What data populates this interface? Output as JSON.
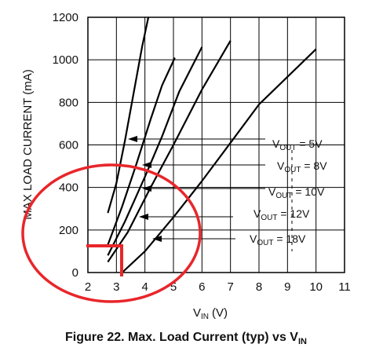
{
  "chart_data": {
    "type": "line",
    "title": "",
    "xlabel": {
      "main": "V",
      "sub": "IN",
      "unit": "(V)"
    },
    "ylabel": "MAX LOAD CURRENT (mA)",
    "xlim": [
      2,
      11
    ],
    "ylim": [
      0,
      1200
    ],
    "xticks": [
      "2",
      "3",
      "4",
      "5",
      "6",
      "7",
      "8",
      "9",
      "10",
      "11"
    ],
    "yticks": [
      "0",
      "200",
      "400",
      "600",
      "800",
      "1000",
      "1200"
    ],
    "grid": true,
    "series": [
      {
        "name": "V_OUT = 5V",
        "points": [
          [
            2.7,
            280
          ],
          [
            3.0,
            420
          ],
          [
            3.3,
            620
          ],
          [
            3.6,
            840
          ],
          [
            3.9,
            1060
          ],
          [
            4.2,
            1250
          ]
        ]
      },
      {
        "name": "V_OUT = 8V",
        "points": [
          [
            2.7,
            130
          ],
          [
            3.2,
            310
          ],
          [
            3.7,
            510
          ],
          [
            4.2,
            720
          ],
          [
            4.6,
            880
          ],
          [
            5.05,
            1010
          ]
        ]
      },
      {
        "name": "V_OUT = 10V",
        "points": [
          [
            2.7,
            80
          ],
          [
            3.3,
            240
          ],
          [
            4.0,
            450
          ],
          [
            4.6,
            640
          ],
          [
            5.2,
            850
          ],
          [
            6.0,
            1060
          ]
        ]
      },
      {
        "name": "V_OUT = 12V",
        "points": [
          [
            2.7,
            50
          ],
          [
            3.4,
            190
          ],
          [
            4.2,
            400
          ],
          [
            5.0,
            600
          ],
          [
            6.0,
            860
          ],
          [
            7.0,
            1090
          ]
        ]
      },
      {
        "name": "V_OUT = 18V",
        "points": [
          [
            3.2,
            0
          ],
          [
            4.0,
            100
          ],
          [
            5.0,
            260
          ],
          [
            6.0,
            430
          ],
          [
            7.0,
            610
          ],
          [
            8.0,
            790
          ],
          [
            9.0,
            920
          ],
          [
            10.0,
            1050
          ]
        ]
      }
    ],
    "annotations": [
      {
        "main": "V",
        "sub": "OUT",
        "rest": " = 5V"
      },
      {
        "main": "V",
        "sub": "OUT",
        "rest": " = 8V"
      },
      {
        "main": "V",
        "sub": "OUT",
        "rest": " = 10V"
      },
      {
        "main": "V",
        "sub": "OUT",
        "rest": " = 12V"
      },
      {
        "main": "V",
        "sub": "OUT",
        "rest": " = 18V"
      }
    ]
  },
  "caption": {
    "main": "Figure 22.  Max. Load Current (typ) vs V",
    "sub": "IN"
  },
  "overlay_color": "#e8262a"
}
